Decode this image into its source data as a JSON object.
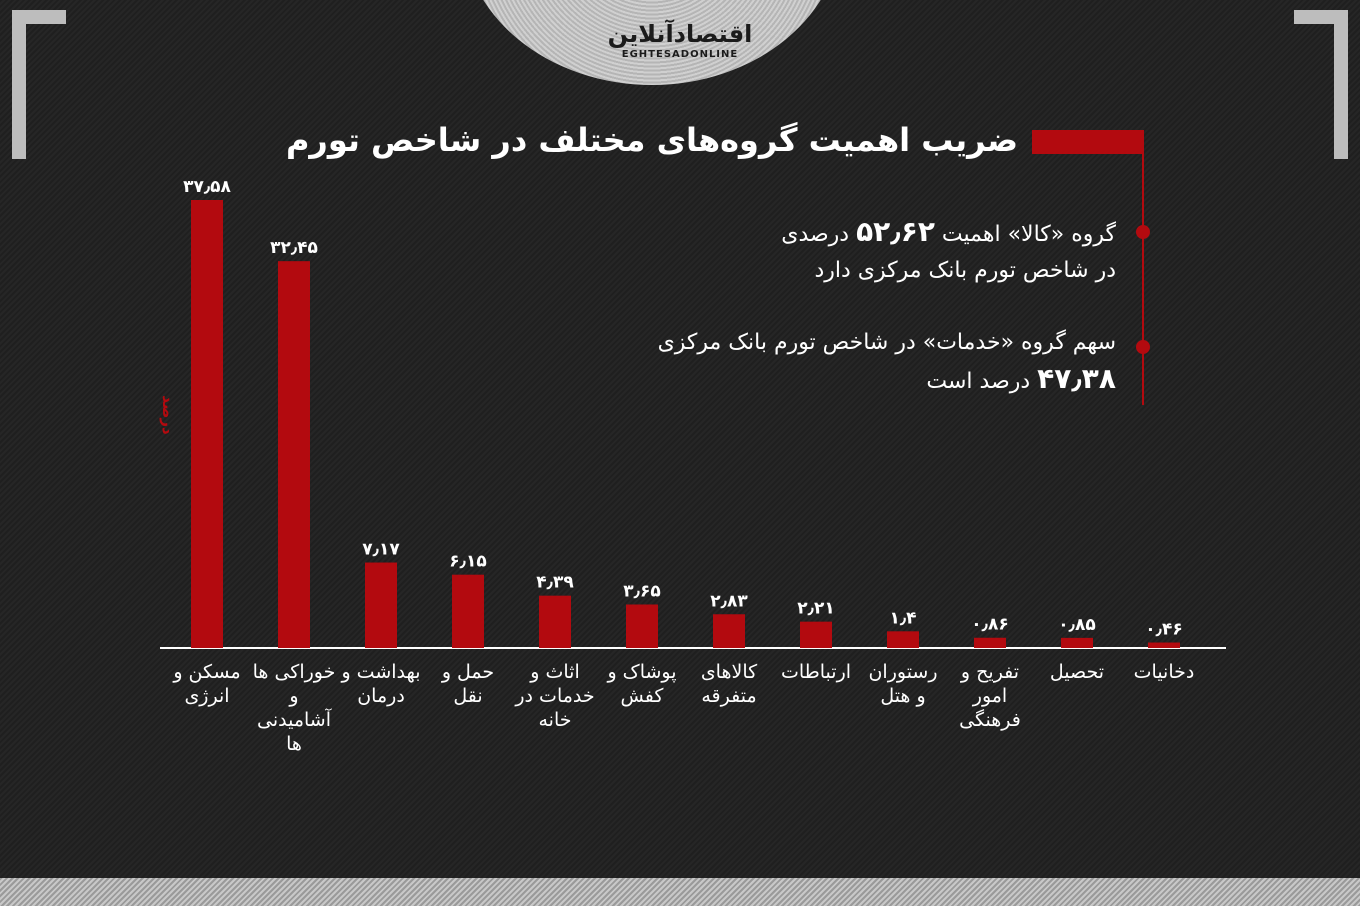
{
  "logo": {
    "fa": "اقتصادآنلاین",
    "en": "EGHTESADONLINE"
  },
  "title": "ضریب اهمیت گروه‌های مختلف در شاخص تورم",
  "notes": [
    {
      "before": "گروه «کالا» اهمیت",
      "number": "۵۲٫۶۲",
      "after": "درصدی",
      "line2": "در شاخص تورم بانک مرکزی دارد"
    },
    {
      "line1": "سهم گروه «خدمات» در شاخص تورم بانک مرکزی",
      "number": "۴۷٫۳۸",
      "after": "درصد است"
    }
  ],
  "colors": {
    "bar": "#b30a0f",
    "background": "#1d1d1d",
    "text": "#ffffff"
  },
  "chart_data": {
    "type": "bar",
    "title": "ضریب اهمیت گروه‌های مختلف در شاخص تورم",
    "ylabel": "درصد",
    "xlabel": "",
    "ylim": [
      0,
      40
    ],
    "grid": false,
    "categories": [
      "مسکن و انرژی",
      "خوراکی ها و آشامیدنی ها",
      "بهداشت و درمان",
      "حمل و نقل",
      "اثاث و خدمات در خانه",
      "پوشاک و کفش",
      "کالاهای متفرقه",
      "ارتباطات",
      "رستوران و هتل",
      "تفریح و امور فرهنگی",
      "تحصیل",
      "دخانیات"
    ],
    "values": [
      37.58,
      32.45,
      7.17,
      6.15,
      4.39,
      3.65,
      2.83,
      2.21,
      1.4,
      0.86,
      0.85,
      0.46
    ],
    "value_labels": [
      "۳۷٫۵۸",
      "۳۲٫۴۵",
      "۷٫۱۷",
      "۶٫۱۵",
      "۴٫۳۹",
      "۳٫۶۵",
      "۲٫۸۳",
      "۲٫۲۱",
      "۱٫۴",
      "۰٫۸۶",
      "۰٫۸۵",
      "۰٫۴۶"
    ]
  }
}
